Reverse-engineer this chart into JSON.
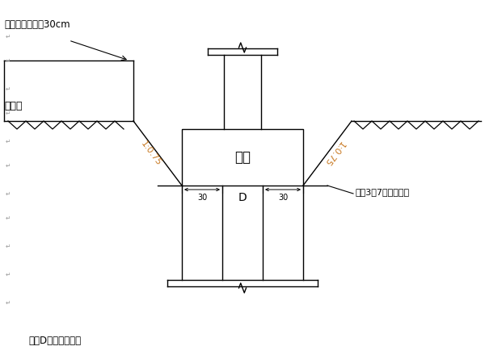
{
  "bg_color": "#ffffff",
  "line_color": "#000000",
  "slope_label_color": "#c87820",
  "title_text": "回填面高出地面30cm",
  "ground_label": "地面线",
  "slope_label_left": "1:0.75",
  "slope_label_right": "1:0.75",
  "cap_label": "承台",
  "D_label": "D",
  "note_label": "注：D为承台长或宽",
  "backfill_label": "回塱3：7灰土并失实",
  "dim_30": "30",
  "figsize": [
    6.0,
    4.5
  ],
  "dpi": 100
}
